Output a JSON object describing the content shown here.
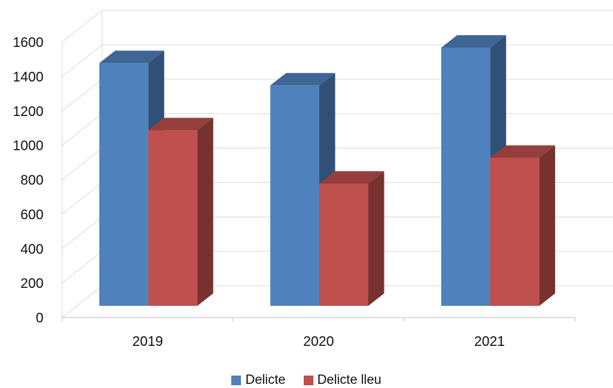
{
  "chart_data": {
    "type": "bar",
    "categories": [
      "2019",
      "2020",
      "2021"
    ],
    "series": [
      {
        "name": "Delicte",
        "values": [
          1410,
          1280,
          1500
        ],
        "color": "#4F81BD"
      },
      {
        "name": "Delicte lleu",
        "values": [
          1020,
          710,
          860
        ],
        "color": "#C0504D"
      }
    ],
    "title": "",
    "xlabel": "",
    "ylabel": "",
    "ylim": [
      0,
      1600
    ],
    "yticks": [
      0,
      200,
      400,
      600,
      800,
      1000,
      1200,
      1400,
      1600
    ],
    "grid": true,
    "legend_position": "bottom"
  }
}
